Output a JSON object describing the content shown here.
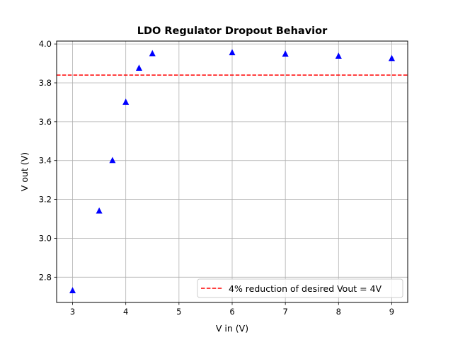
{
  "chart_data": {
    "type": "scatter",
    "title": "LDO Regulator Dropout Behavior",
    "xlabel": "V in (V)",
    "ylabel": "V out (V)",
    "xlim": [
      2.7,
      9.3
    ],
    "ylim": [
      2.67,
      4.015
    ],
    "xticks": [
      3,
      4,
      5,
      6,
      7,
      8,
      9
    ],
    "yticks": [
      2.8,
      3.0,
      3.2,
      3.4,
      3.6,
      3.8,
      4.0
    ],
    "xtick_labels": [
      "3",
      "4",
      "5",
      "6",
      "7",
      "8",
      "9"
    ],
    "ytick_labels": [
      "2.8",
      "3.0",
      "3.2",
      "3.4",
      "3.6",
      "3.8",
      "4.0"
    ],
    "grid": true,
    "series": [
      {
        "marker": "triangle-up",
        "color": "#0000ff",
        "points": [
          {
            "x": 3.0,
            "y": 2.73
          },
          {
            "x": 3.5,
            "y": 3.14
          },
          {
            "x": 3.75,
            "y": 3.4
          },
          {
            "x": 4.0,
            "y": 3.7
          },
          {
            "x": 4.25,
            "y": 3.875
          },
          {
            "x": 4.5,
            "y": 3.95
          },
          {
            "x": 6.0,
            "y": 3.955
          },
          {
            "x": 7.0,
            "y": 3.948
          },
          {
            "x": 8.0,
            "y": 3.937
          },
          {
            "x": 9.0,
            "y": 3.925
          }
        ]
      }
    ],
    "reference_line": {
      "name": "4% reduction of desired Vout = 4V",
      "y": 3.84,
      "color": "#ff0000",
      "style": "dashed"
    },
    "legend_position": "lower-right"
  }
}
